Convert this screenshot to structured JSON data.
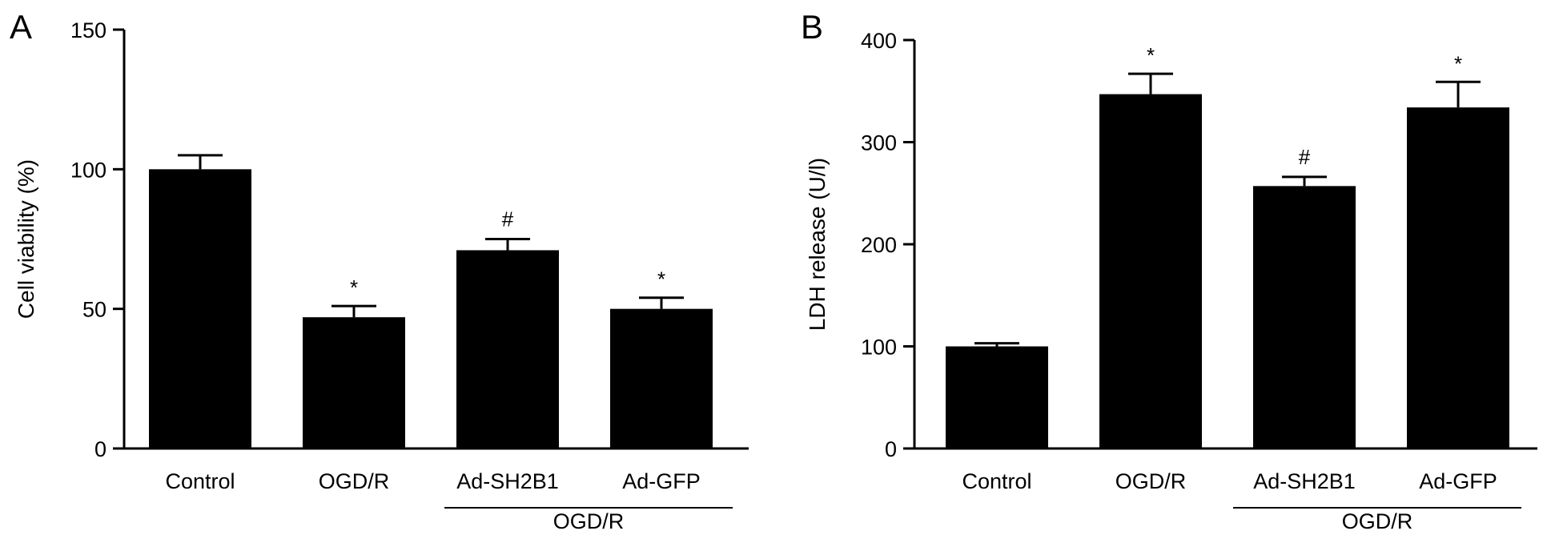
{
  "chart_data": [
    {
      "panel": "A",
      "type": "bar",
      "ylabel": "Cell viability (%)",
      "ylim": [
        0,
        150
      ],
      "yticks": [
        "0",
        "50",
        "100",
        "150"
      ],
      "categories": [
        "Control",
        "OGD/R",
        "Ad-SH2B1",
        "Ad-GFP"
      ],
      "values": [
        100,
        47,
        71,
        50
      ],
      "errors": [
        5,
        4,
        4,
        4
      ],
      "significance": [
        "",
        "*",
        "#",
        "*"
      ],
      "group_label": "OGD/R",
      "color": "#000000"
    },
    {
      "panel": "B",
      "type": "bar",
      "ylabel": "LDH release (U/l)",
      "ylim": [
        0,
        400
      ],
      "yticks": [
        "0",
        "100",
        "200",
        "300",
        "400"
      ],
      "categories": [
        "Control",
        "OGD/R",
        "Ad-SH2B1",
        "Ad-GFP"
      ],
      "values": [
        100,
        347,
        257,
        334
      ],
      "errors": [
        3,
        20,
        9,
        25
      ],
      "significance": [
        "",
        "*",
        "#",
        "*"
      ],
      "group_label": "OGD/R",
      "color": "#000000"
    }
  ]
}
